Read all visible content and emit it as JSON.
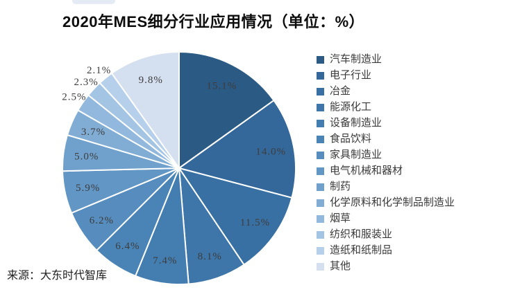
{
  "page": {
    "background": "#ffffff"
  },
  "header": {
    "title": "2020年MES细分行业应用情况（单位：%）"
  },
  "footer": {
    "source": "来源：大东时代智库"
  },
  "chart_data": {
    "type": "pie",
    "title": "2020年MES细分行业应用情况（单位：%）",
    "unit": "%",
    "start_angle_deg": 0,
    "direction": "clockwise",
    "legend_position": "right",
    "categories": [
      "汽车制造业",
      "电子行业",
      "冶金",
      "能源化工",
      "设备制造业",
      "食品饮料",
      "家具制造业",
      "电气机械和器材",
      "制药",
      "化学原料和化学制品制造业",
      "烟草",
      "纺织和服装业",
      "造纸和纸制品",
      "其他"
    ],
    "values": [
      15.1,
      14.0,
      11.5,
      8.1,
      7.4,
      6.4,
      6.2,
      5.9,
      5.0,
      3.7,
      2.5,
      2.3,
      2.1,
      9.8
    ],
    "labels": [
      "15.1%",
      "14.0%",
      "11.5%",
      "8.1%",
      "7.4%",
      "6.4%",
      "6.2%",
      "5.9%",
      "5.0%",
      "3.7%",
      "2.5%",
      "2.3%",
      "2.1%",
      "9.8%"
    ],
    "colors": [
      "#2B5A84",
      "#34689B",
      "#3970A3",
      "#3E76A9",
      "#447DB0",
      "#4A83B6",
      "#568DBE",
      "#6296C5",
      "#70A1CC",
      "#81ADD5",
      "#92B9DD",
      "#A4C4E4",
      "#B6CFEA",
      "#D4DFF0"
    ]
  }
}
